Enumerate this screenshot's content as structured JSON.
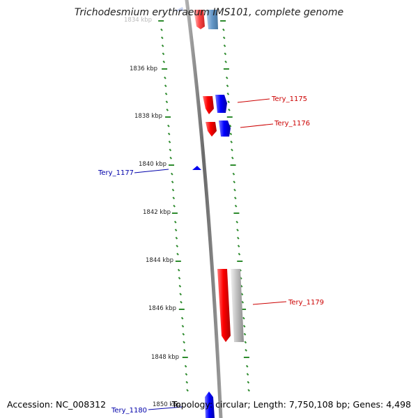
{
  "title": "Trichodesmium erythraeum IMS101, complete genome",
  "footer": {
    "accession": "Accession: NC_008312",
    "stats": "Topology: circular; Length: 7,750,108 bp; Genes: 4,498"
  },
  "ticks": [
    {
      "label": "1834 kbp",
      "faded": true
    },
    {
      "label": "1836 kbp"
    },
    {
      "label": "1838 kbp"
    },
    {
      "label": "1840 kbp"
    },
    {
      "label": "1842 kbp"
    },
    {
      "label": "1844 kbp"
    },
    {
      "label": "1846 kbp"
    },
    {
      "label": "1848 kbp"
    },
    {
      "label": "1850 kbp"
    }
  ],
  "gene_labels": [
    {
      "text": "Tery_1175",
      "color": "#cc0000"
    },
    {
      "text": "Tery_1176",
      "color": "#cc0000"
    },
    {
      "text": "Tery_1177",
      "color": "#0000aa"
    },
    {
      "text": "Tery_1179",
      "color": "#cc0000"
    },
    {
      "text": "Tery_1180",
      "color": "#0000aa"
    }
  ],
  "colors": {
    "ruler": "#2e8b2e",
    "backbone": "#777777",
    "forward_strand": "#ff0000",
    "reverse_strand": "#0000ff",
    "pseudo": "#b8b8b8",
    "faded_blue": "#4a86c0"
  }
}
